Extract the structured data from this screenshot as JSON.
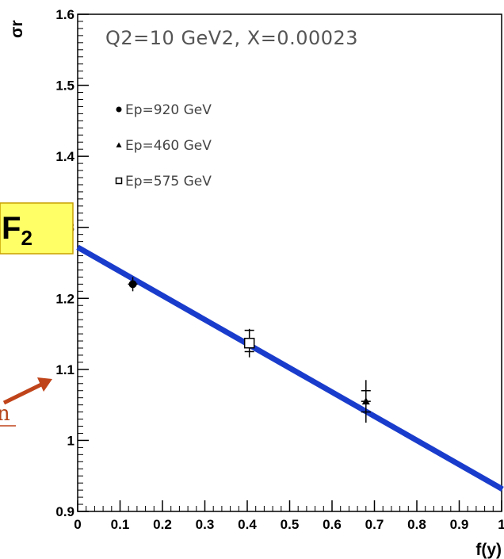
{
  "chart_data": {
    "type": "scatter",
    "title": "Q2=10 GeV2, X=0.00023",
    "xlabel": "f(y)",
    "ylabel": "σr",
    "xlim": [
      0,
      1
    ],
    "ylim": [
      0.9,
      1.6
    ],
    "x_ticks": [
      "0",
      "0.1",
      "0.2",
      "0.3",
      "0.4",
      "0.5",
      "0.6",
      "0.7",
      "0.8",
      "0.9",
      "1"
    ],
    "y_ticks": [
      "0.9",
      "1",
      "1.1",
      "1.2",
      "1.3",
      "1.4",
      "1.5",
      "1.6"
    ],
    "grid": false,
    "legend_position": "top-left",
    "series": [
      {
        "name": "Ep=920 GeV",
        "marker": "circle",
        "points": [
          {
            "x": 0.13,
            "y": 1.22,
            "err": 0.01
          }
        ]
      },
      {
        "name": "Ep=460 GeV",
        "marker": "triangle",
        "points": [
          {
            "x": 0.68,
            "y": 1.055,
            "err": 0.03
          }
        ]
      },
      {
        "name": "Ep=575 GeV",
        "marker": "open-square",
        "points": [
          {
            "x": 0.405,
            "y": 1.137,
            "err": 0.02
          }
        ]
      }
    ],
    "extra_ticks": [
      {
        "x": 0.405,
        "y": 1.155
      },
      {
        "x": 0.405,
        "y": 1.125
      },
      {
        "x": 0.68,
        "y": 1.07
      },
      {
        "x": 0.68,
        "y": 1.04
      }
    ],
    "fit_line": {
      "intercept": 1.272,
      "slope": -0.34,
      "color": "#1a3ccc"
    }
  },
  "annotations": {
    "f2_label": "F",
    "f2_subscript": "2",
    "f2_box_color": "#ffff66",
    "partial_letter": "n",
    "arrow_color": "#c0441a"
  }
}
